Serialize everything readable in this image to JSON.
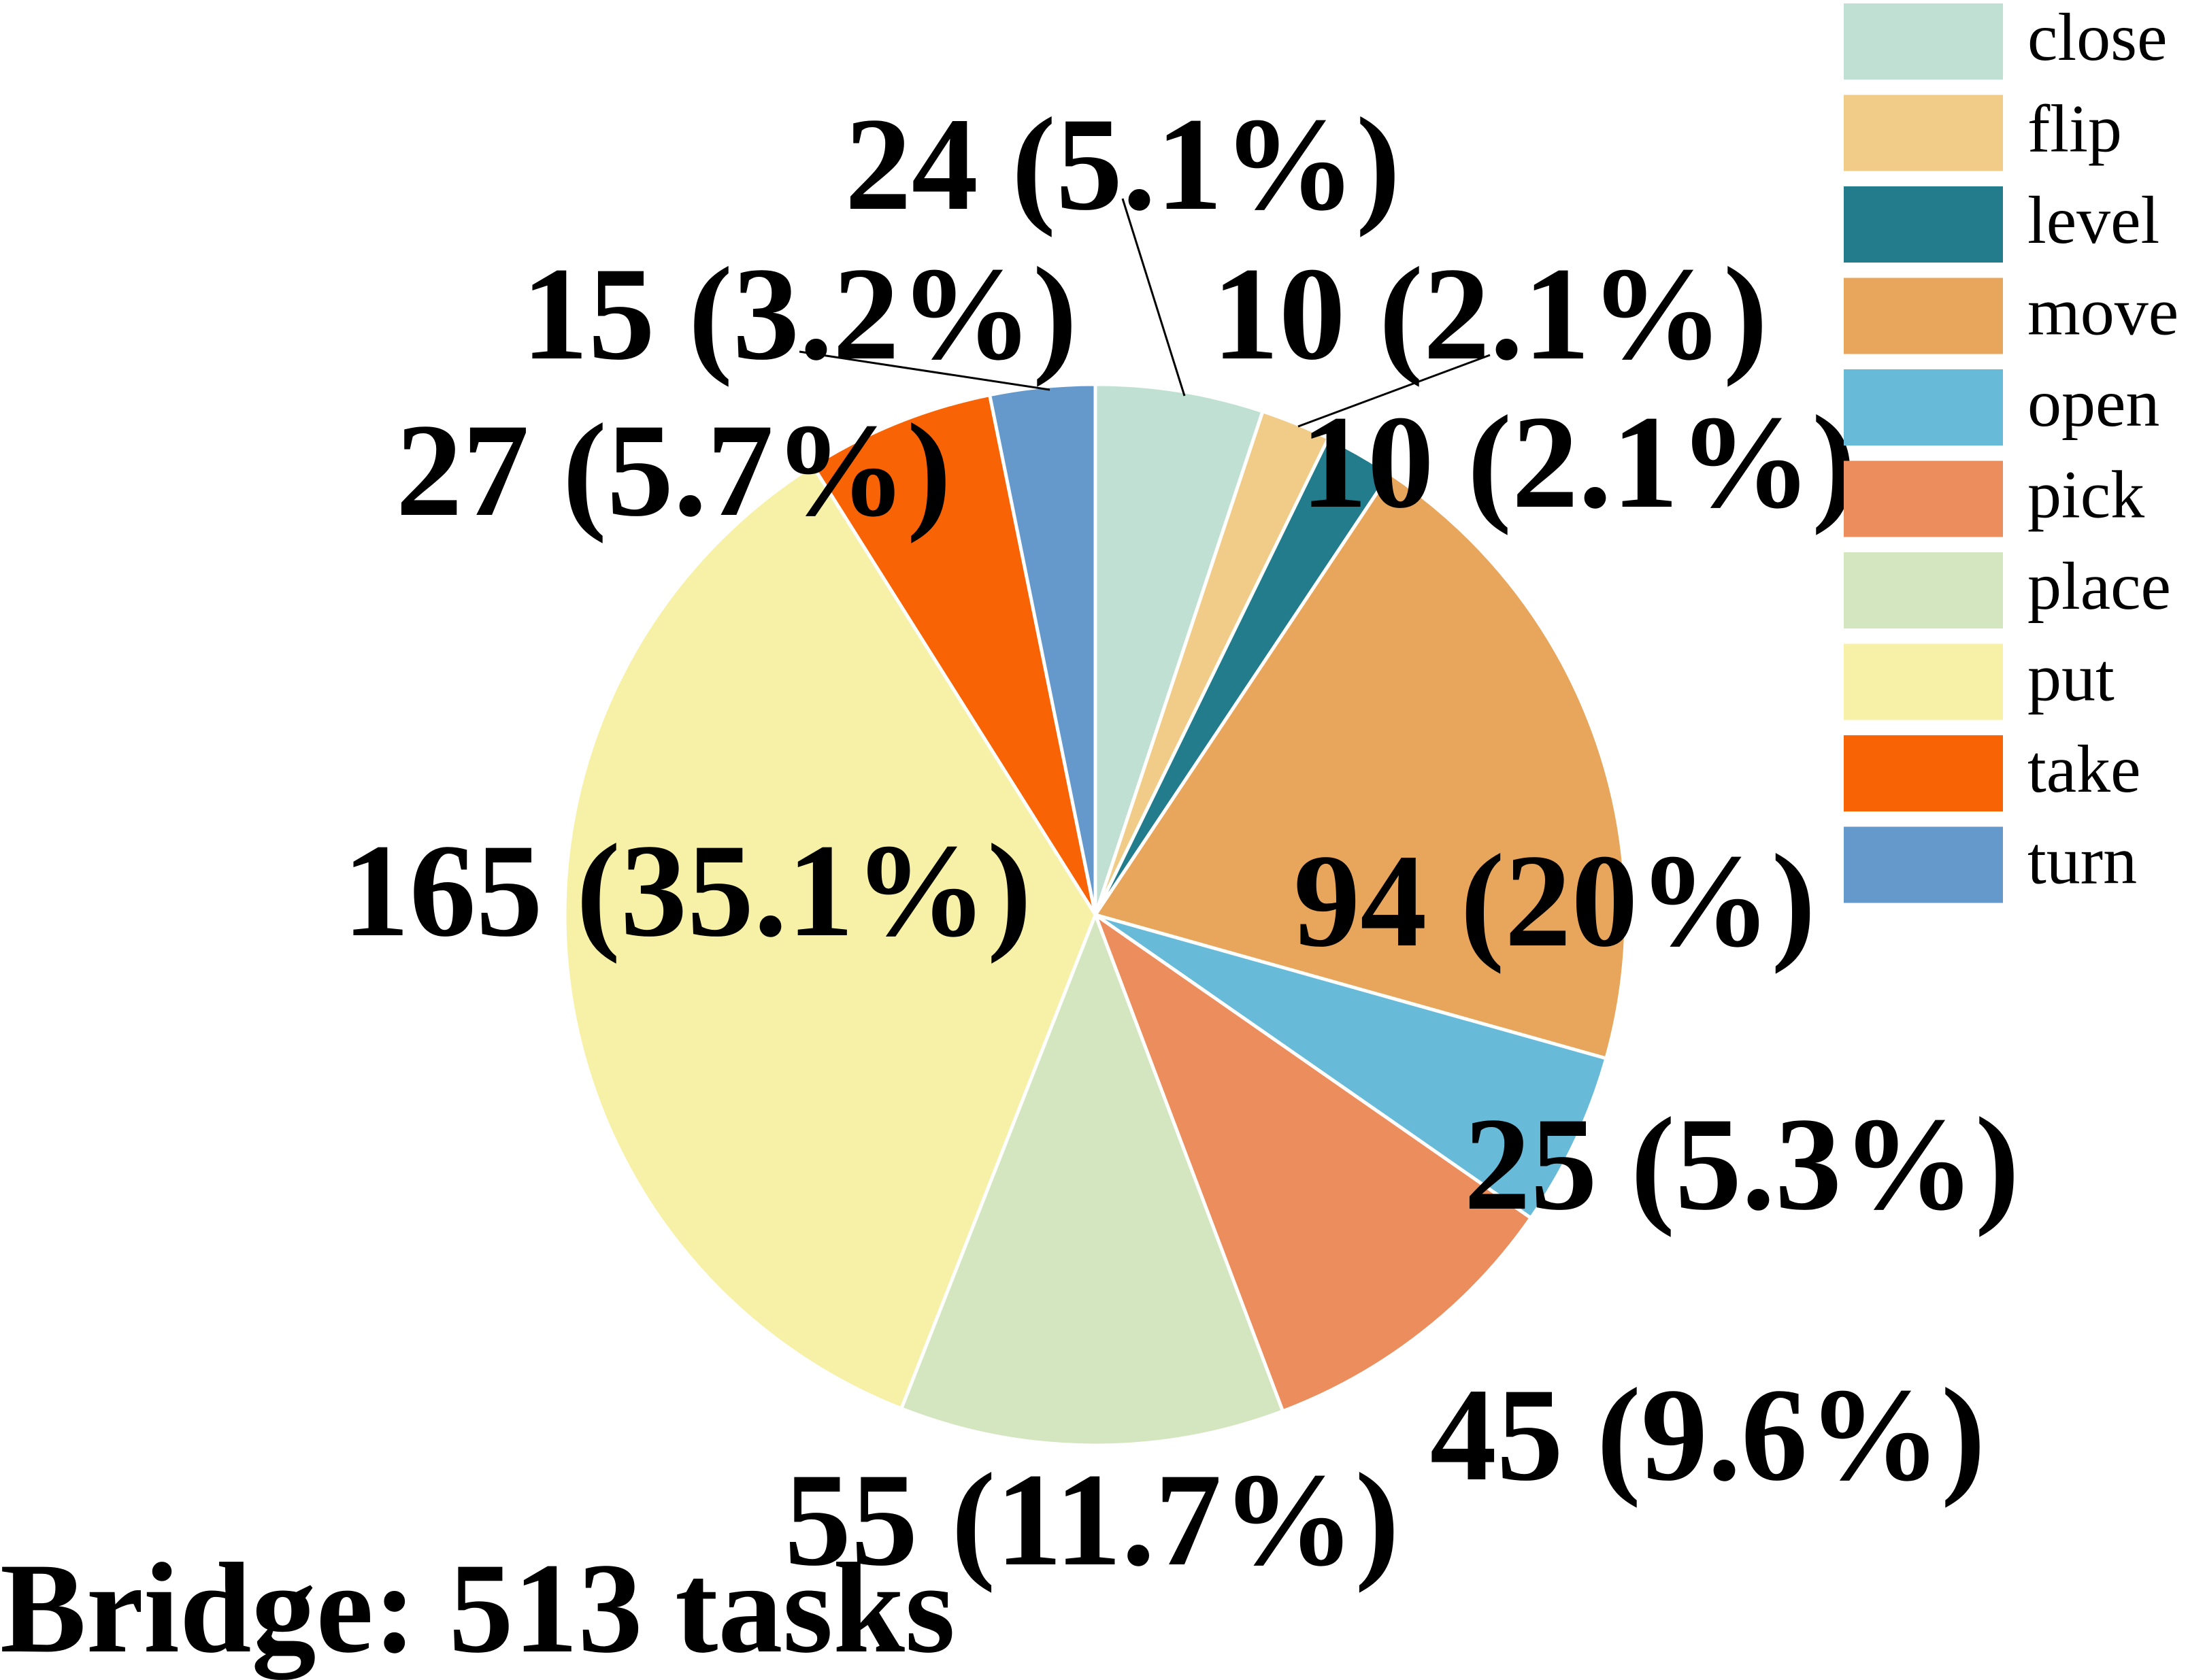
{
  "chart_data": {
    "type": "pie",
    "caption": "Bridge: 513 tasks",
    "categories": [
      "close",
      "flip",
      "level",
      "move",
      "open",
      "pick",
      "place",
      "put",
      "take",
      "turn"
    ],
    "values": [
      24,
      10,
      10,
      94,
      25,
      45,
      55,
      165,
      27,
      15
    ],
    "percent_labels": [
      "24 (5.1%)",
      "10 (2.1%)",
      "10 (2.1%)",
      "94 (20%)",
      "25 (5.3%)",
      "45 (9.6%)",
      "55 (11.7%)",
      "165 (35.1%)",
      "27 (5.7%)",
      "15 (3.2%)"
    ],
    "colors": [
      "#bfe0d2",
      "#f0cc88",
      "#237c8c",
      "#e8a65c",
      "#68bbd8",
      "#ec8d5e",
      "#d4e6bf",
      "#f7f1a7",
      "#f86405",
      "#6598cb"
    ],
    "start_angle": "12 o'clock",
    "direction": "clockwise",
    "legend": "top-right"
  }
}
